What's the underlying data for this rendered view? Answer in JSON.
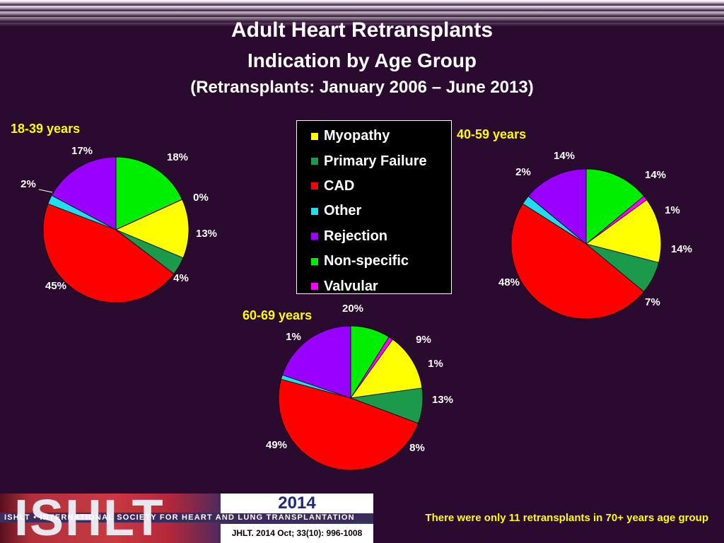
{
  "title": "Adult Heart Retransplants",
  "subtitle": "Indication by Age Group",
  "subtitle2": "(Retransplants: January 2006 – June 2013)",
  "legend": [
    {
      "name": "Myopathy",
      "color": "#ffff00"
    },
    {
      "name": "Primary Failure",
      "color": "#1a9a4a"
    },
    {
      "name": "CAD",
      "color": "#ff0000"
    },
    {
      "name": "Other",
      "color": "#22ddee"
    },
    {
      "name": "Rejection",
      "color": "#9900ff"
    },
    {
      "name": "Non-specific",
      "color": "#00ee00"
    },
    {
      "name": "Valvular",
      "color": "#ff00ff"
    }
  ],
  "chart_data": [
    {
      "type": "pie",
      "title": "18-39 years",
      "categories": [
        "Myopathy",
        "Primary Failure",
        "CAD",
        "Other",
        "Rejection",
        "Non-specific",
        "Valvular"
      ],
      "values": [
        13,
        4,
        45,
        2,
        17,
        18,
        0
      ],
      "labels": [
        "13%",
        "4%",
        "45%",
        "2%",
        "17%",
        "18%",
        "0%"
      ]
    },
    {
      "type": "pie",
      "title": "40-59 years",
      "categories": [
        "Myopathy",
        "Primary Failure",
        "CAD",
        "Other",
        "Rejection",
        "Non-specific",
        "Valvular"
      ],
      "values": [
        14,
        7,
        48,
        2,
        14,
        14,
        1
      ],
      "labels": [
        "14%",
        "7%",
        "48%",
        "2%",
        "14%",
        "14%",
        "1%"
      ]
    },
    {
      "type": "pie",
      "title": "60-69 years",
      "categories": [
        "Myopathy",
        "Primary Failure",
        "CAD",
        "Other",
        "Rejection",
        "Non-specific",
        "Valvular"
      ],
      "values": [
        13,
        8,
        49,
        1,
        20,
        9,
        1
      ],
      "labels": [
        "13%",
        "8%",
        "49%",
        "1%",
        "20%",
        "9%",
        "1%"
      ]
    }
  ],
  "footer": {
    "logo_text": "ISHLT",
    "logo_line": "ISHLT • INTERNATIONAL SOCIETY FOR HEART AND LUNG TRANSPLANTATION",
    "year": "2014",
    "citation": "JHLT. 2014 Oct; 33(10): 996-1008",
    "note": "There were only 11 retransplants in 70+ years age group"
  }
}
